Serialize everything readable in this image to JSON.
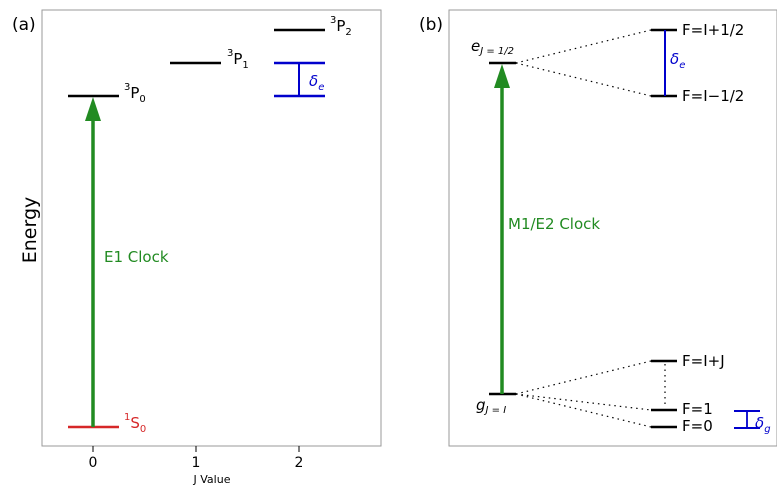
{
  "panels": {
    "a": "(a)",
    "b": "(b)"
  },
  "panel_a": {
    "ylabel": "Energy",
    "xlabel": "J Value",
    "x_ticks": [
      "0",
      "1",
      "2"
    ],
    "levels": {
      "s0": {
        "sup": "1",
        "base": "S",
        "sub": "0"
      },
      "p0": {
        "sup": "3",
        "base": "P",
        "sub": "0"
      },
      "p1": {
        "sup": "3",
        "base": "P",
        "sub": "1"
      },
      "p2": {
        "sup": "3",
        "base": "P",
        "sub": "2"
      }
    },
    "transition_label": "E1 Clock",
    "splitting_label": {
      "base": "δ",
      "sub": "e"
    }
  },
  "panel_b": {
    "upper": {
      "base": "e",
      "sub": "J = 1/2"
    },
    "lower": {
      "base": "g",
      "sub": "J = I"
    },
    "transition_label": "M1/E2 Clock",
    "upper_hyperfine": [
      "F=I+1/2",
      "F=I−1/2"
    ],
    "lower_hyperfine": [
      "F=I+J",
      "F=1",
      "F=0"
    ],
    "splitting_e": {
      "base": "δ",
      "sub": "e"
    },
    "splitting_g": {
      "base": "δ",
      "sub": "g"
    }
  },
  "colors": {
    "clock_arrow": "#228b22",
    "ground_level": "#d62728",
    "splitting": "#0000cc",
    "level": "#000000",
    "frame": "#9a9a9a"
  }
}
